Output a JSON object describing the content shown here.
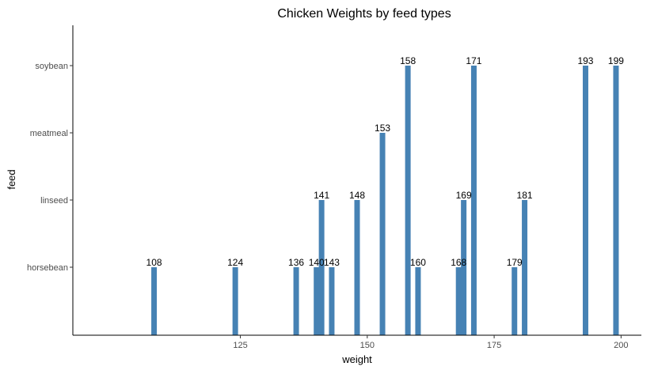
{
  "chart_data": {
    "type": "bar",
    "orientation": "vertical bars on numeric x, categorical y",
    "title": "Chicken Weights by feed types",
    "xlabel": "weight",
    "ylabel": "feed",
    "xlim": [
      92,
      204
    ],
    "x_ticks": [
      125,
      150,
      175,
      200
    ],
    "categories": [
      "horsebean",
      "linseed",
      "meatmeal",
      "soybean"
    ],
    "bar_color": "#4682B4",
    "grid": false,
    "legend": "none",
    "points": [
      {
        "x": 108,
        "feed": "horsebean",
        "label": "108"
      },
      {
        "x": 124,
        "feed": "horsebean",
        "label": "124"
      },
      {
        "x": 136,
        "feed": "horsebean",
        "label": "136"
      },
      {
        "x": 140,
        "feed": "horsebean",
        "label": "140"
      },
      {
        "x": 143,
        "feed": "horsebean",
        "label": "143"
      },
      {
        "x": 160,
        "feed": "horsebean",
        "label": "160"
      },
      {
        "x": 168,
        "feed": "horsebean",
        "label": "168"
      },
      {
        "x": 179,
        "feed": "horsebean",
        "label": "179"
      },
      {
        "x": 141,
        "feed": "linseed",
        "label": "141"
      },
      {
        "x": 148,
        "feed": "linseed",
        "label": "148"
      },
      {
        "x": 169,
        "feed": "linseed",
        "label": "169"
      },
      {
        "x": 181,
        "feed": "linseed",
        "label": "181"
      },
      {
        "x": 153,
        "feed": "meatmeal",
        "label": "153"
      },
      {
        "x": 158,
        "feed": "soybean",
        "label": "158"
      },
      {
        "x": 171,
        "feed": "soybean",
        "label": "171"
      },
      {
        "x": 193,
        "feed": "soybean",
        "label": "193"
      },
      {
        "x": 199,
        "feed": "soybean",
        "label": "199"
      }
    ]
  }
}
